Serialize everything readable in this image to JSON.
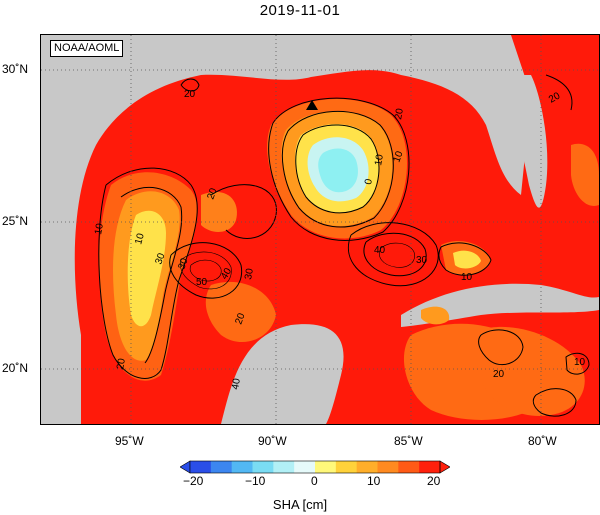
{
  "title": "2019-11-01",
  "credit": "NOAA/AOML",
  "map": {
    "lon_ticks": [
      "95˚W",
      "90˚W",
      "85˚W",
      "80˚W"
    ],
    "lat_ticks": [
      "30˚N",
      "25˚N",
      "20˚N"
    ],
    "contour_labels": [
      "20",
      "10",
      "30",
      "10",
      "20",
      "30",
      "40",
      "50",
      "30",
      "10",
      "10",
      "0",
      "20",
      "40",
      "30",
      "10",
      "20",
      "40",
      "20",
      "20",
      "20",
      "10"
    ],
    "marker": "triangle",
    "colors": {
      "land": "#c8c8c8",
      "high": "#ff1a0a",
      "warm": "#ff6a14",
      "orange": "#ff9a1e",
      "yellow": "#ffe24a",
      "cool": "#c8f4f2",
      "cyan": "#8ef0f2"
    }
  },
  "colorbar": {
    "ticks": [
      "−20",
      "−10",
      "0",
      "10",
      "20"
    ],
    "label": "SHA [cm]",
    "range": [
      -20,
      20
    ],
    "colors": [
      "#2a4ee8",
      "#3c86f0",
      "#52b8f4",
      "#7adcf4",
      "#b2f0f6",
      "#e6fafa",
      "#fff87a",
      "#ffd23a",
      "#ffae2a",
      "#ff8a20",
      "#ff5a16",
      "#ff200c"
    ]
  }
}
